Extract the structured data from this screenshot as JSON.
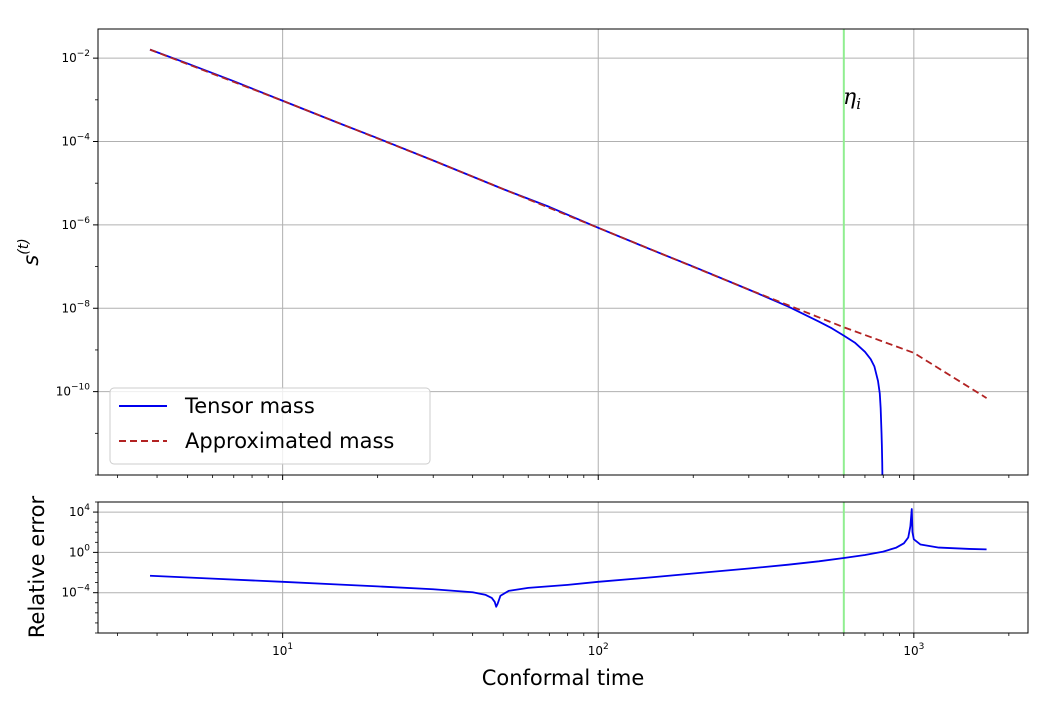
{
  "chart_data": [
    {
      "type": "line",
      "panel": "top",
      "xscale": "log",
      "yscale": "log",
      "xlim": [
        2.6,
        2300
      ],
      "ylim": [
        1e-12,
        0.05
      ],
      "ylabel": "s(t)",
      "ylabel_main": "s",
      "ylabel_sup": "(t)",
      "grid": true,
      "legend_position": "lower-left",
      "xticks": [
        10,
        100,
        1000
      ],
      "xtick_labels": [
        {
          "base": "10",
          "exp": "1"
        },
        {
          "base": "10",
          "exp": "2"
        },
        {
          "base": "10",
          "exp": "3"
        }
      ],
      "yticks": [
        1e-10,
        1e-08,
        1e-06,
        0.0001,
        0.01
      ],
      "ytick_labels": [
        {
          "base": "10",
          "exp": "−10"
        },
        {
          "base": "10",
          "exp": "−8"
        },
        {
          "base": "10",
          "exp": "−6"
        },
        {
          "base": "10",
          "exp": "−4"
        },
        {
          "base": "10",
          "exp": "−2"
        }
      ],
      "vline": {
        "x": 600,
        "label": "η",
        "label_sub": "i",
        "color": "#90ee90"
      },
      "series": [
        {
          "name": "Tensor mass",
          "color": "#0000ee",
          "style": "solid",
          "x": [
            3.8,
            5,
            7,
            10,
            15,
            20,
            30,
            50,
            70,
            100,
            150,
            200,
            300,
            400,
            500,
            550,
            600,
            650,
            700,
            730,
            750,
            770,
            780,
            785,
            790,
            792,
            794,
            795
          ],
          "y": [
            0.016,
            0.0074,
            0.0028,
            0.00095,
            0.00028,
            0.00012,
            3.5e-05,
            7.2e-06,
            2.7e-06,
            8.5e-07,
            2.4e-07,
            1e-07,
            2.8e-08,
            1.1e-08,
            4.8e-09,
            3.3e-09,
            2.2e-09,
            1.5e-09,
            9e-10,
            6e-10,
            4e-10,
            1.8e-10,
            9e-11,
            4e-11,
            1e-11,
            5e-12,
            2e-12,
            1e-12
          ]
        },
        {
          "name": "Approximated mass",
          "color": "#b22222",
          "style": "dashed",
          "x": [
            3.8,
            10,
            30,
            100,
            300,
            600,
            1000,
            1700
          ],
          "y": [
            0.016,
            0.00095,
            3.5e-05,
            8.5e-07,
            2.8e-08,
            3.5e-09,
            8.5e-10,
            7e-11
          ]
        }
      ]
    },
    {
      "type": "line",
      "panel": "bottom",
      "xscale": "log",
      "yscale": "log",
      "xlim": [
        2.6,
        2300
      ],
      "ylim": [
        1e-08,
        100000.0
      ],
      "xlabel": "Conformal time",
      "ylabel": "Relative error",
      "grid": true,
      "xticks": [
        10,
        100,
        1000
      ],
      "xtick_labels": [
        {
          "base": "10",
          "exp": "1"
        },
        {
          "base": "10",
          "exp": "2"
        },
        {
          "base": "10",
          "exp": "3"
        }
      ],
      "yticks": [
        0.0001,
        1,
        10000.0
      ],
      "ytick_labels": [
        {
          "base": "10",
          "exp": "−4"
        },
        {
          "base": "10",
          "exp": "0"
        },
        {
          "base": "10",
          "exp": "4"
        }
      ],
      "vline": {
        "x": 600,
        "color": "#90ee90"
      },
      "series": [
        {
          "color": "#0000ee",
          "style": "solid",
          "x": [
            3.8,
            6,
            10,
            15,
            20,
            30,
            40,
            44,
            46,
            47,
            47.5,
            48,
            49,
            52,
            60,
            80,
            100,
            150,
            200,
            300,
            400,
            500,
            600,
            700,
            800,
            880,
            930,
            960,
            975,
            985,
            990,
            1000,
            1050,
            1200,
            1500,
            1700
          ],
          "y": [
            0.0048,
            0.0025,
            0.0012,
            0.00065,
            0.00042,
            0.00022,
            0.00011,
            6e-05,
            3e-05,
            1.2e-05,
            4e-06,
            8e-06,
            5e-05,
            0.00015,
            0.0003,
            0.0006,
            0.0012,
            0.0035,
            0.008,
            0.025,
            0.06,
            0.13,
            0.28,
            0.55,
            1.2,
            3,
            8,
            30,
            400,
            20000,
            100,
            20,
            6,
            3,
            2.2,
            2.0
          ]
        }
      ]
    }
  ]
}
